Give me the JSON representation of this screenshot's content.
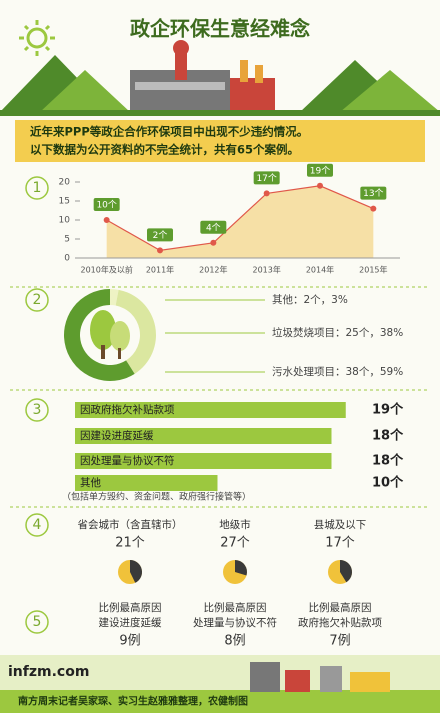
{
  "header": {
    "title": "政企环保生意经难念"
  },
  "intro": [
    "近年来PPP等政企合作环保项目中出现不少违约情况。",
    "以下数据为公开资料的不完全统计，共有65个案例。"
  ],
  "section_numbers": [
    "1",
    "2",
    "3",
    "4",
    "5"
  ],
  "chart_data": [
    {
      "type": "line",
      "categories": [
        "2010年及以前",
        "2011年",
        "2012年",
        "2013年",
        "2014年",
        "2015年"
      ],
      "values": [
        10,
        2,
        4,
        17,
        19,
        13
      ],
      "value_labels": [
        "10个",
        "2个",
        "4个",
        "17个",
        "19个",
        "13个"
      ],
      "ylim": [
        0,
        20
      ],
      "yticks": [
        0,
        5,
        10,
        15,
        20
      ],
      "color": "#e0584a",
      "area_color": "#f6e0a6",
      "label_color": "#5e9c2e"
    },
    {
      "type": "pie",
      "categories": [
        "其他",
        "垃圾焚烧项目",
        "污水处理项目"
      ],
      "labels": [
        "其他：2个，3%",
        "垃圾焚烧项目：25个，38%",
        "污水处理项目：38个，59%"
      ],
      "values": [
        3,
        38,
        59
      ],
      "colors": [
        "#eef3c4",
        "#dbe7a0",
        "#5e9c2e"
      ]
    },
    {
      "type": "bar",
      "categories": [
        "因政府拖欠补贴款项",
        "因建设进度延缓",
        "因处理量与协议不符",
        "其他"
      ],
      "values": [
        19,
        18,
        18,
        10
      ],
      "value_labels": [
        "19个",
        "18个",
        "18个",
        "10个"
      ],
      "note": "（包括单方毁约、资金问题、政府强行接管等）",
      "xlim": [
        0,
        20
      ],
      "color": "#9cc83f"
    },
    {
      "type": "pie",
      "colors": [
        "#3a3a3a",
        "#f0c23a"
      ],
      "groups": [
        {
          "name": "省会城市（含直辖市）",
          "total": 21,
          "total_label": "21个",
          "reason_title": "比例最高原因",
          "reason": "建设进度延缓",
          "count": 9,
          "count_label": "9例"
        },
        {
          "name": "地级市",
          "total": 27,
          "total_label": "27个",
          "reason_title": "比例最高原因",
          "reason": "处理量与协议不符",
          "count": 8,
          "count_label": "8例"
        },
        {
          "name": "县城及以下",
          "total": 17,
          "total_label": "17个",
          "reason_title": "比例最高原因",
          "reason": "政府拖欠补贴款项",
          "count": 7,
          "count_label": "7例"
        }
      ]
    }
  ],
  "footer": {
    "site": "infzm.com",
    "credit": "南方周末记者吴家琛、实习生赵雅雅整理，农健制图"
  }
}
